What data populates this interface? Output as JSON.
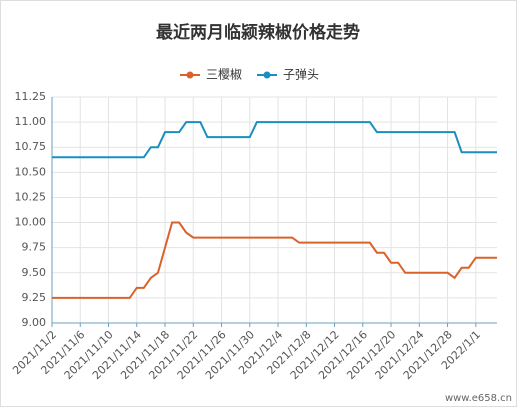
{
  "chart_data": {
    "type": "line",
    "title": "最近两月临颍辣椒价格走势",
    "categories": [
      "2021/11/2",
      null,
      null,
      null,
      "2021/11/6",
      null,
      null,
      null,
      "2021/11/10",
      null,
      null,
      null,
      "2021/11/14",
      null,
      null,
      null,
      "2021/11/18",
      null,
      null,
      null,
      "2021/11/22",
      null,
      null,
      null,
      "2021/11/26",
      null,
      null,
      null,
      "2021/11/30",
      null,
      null,
      null,
      "2021/12/4",
      null,
      null,
      null,
      "2021/12/8",
      null,
      null,
      null,
      "2021/12/12",
      null,
      null,
      null,
      "2021/12/16",
      null,
      null,
      null,
      "2021/12/20",
      null,
      null,
      null,
      "2021/12/24",
      null,
      null,
      null,
      "2021/12/28",
      null,
      null,
      null,
      "2022/1/1",
      null,
      null,
      null
    ],
    "series": [
      {
        "name": "三樱椒",
        "color": "#d9622b",
        "values": [
          9.25,
          9.25,
          9.25,
          9.25,
          9.25,
          9.25,
          9.25,
          9.25,
          9.25,
          9.25,
          9.25,
          9.25,
          9.35,
          9.35,
          9.45,
          9.5,
          9.75,
          10,
          10,
          9.9,
          9.85,
          9.85,
          9.85,
          9.85,
          9.85,
          9.85,
          9.85,
          9.85,
          9.85,
          9.85,
          9.85,
          9.85,
          9.85,
          9.85,
          9.85,
          9.8,
          9.8,
          9.8,
          9.8,
          9.8,
          9.8,
          9.8,
          9.8,
          9.8,
          9.8,
          9.8,
          9.7,
          9.7,
          9.6,
          9.6,
          9.5,
          9.5,
          9.5,
          9.5,
          9.5,
          9.5,
          9.5,
          9.45,
          9.55,
          9.55,
          9.65,
          9.65,
          9.65,
          9.65
        ]
      },
      {
        "name": "子弹头",
        "color": "#1a8fbf",
        "values": [
          10.65,
          10.65,
          10.65,
          10.65,
          10.65,
          10.65,
          10.65,
          10.65,
          10.65,
          10.65,
          10.65,
          10.65,
          10.65,
          10.65,
          10.75,
          10.75,
          10.9,
          10.9,
          10.9,
          11,
          11,
          11,
          10.85,
          10.85,
          10.85,
          10.85,
          10.85,
          10.85,
          10.85,
          11,
          11,
          11,
          11,
          11,
          11,
          11,
          11,
          11,
          11,
          11,
          11,
          11,
          11,
          11,
          11,
          11,
          10.9,
          10.9,
          10.9,
          10.9,
          10.9,
          10.9,
          10.9,
          10.9,
          10.9,
          10.9,
          10.9,
          10.9,
          10.7,
          10.7,
          10.7,
          10.7,
          10.7,
          10.7
        ]
      }
    ],
    "ylim": [
      9,
      11.25
    ],
    "yticks": [
      {
        "value": 9,
        "label": "9.00"
      },
      {
        "value": 9.25,
        "label": "9.25"
      },
      {
        "value": 9.5,
        "label": "9.50"
      },
      {
        "value": 9.75,
        "label": "9.75"
      },
      {
        "value": 10,
        "label": "10.00"
      },
      {
        "value": 10.25,
        "label": "10.25"
      },
      {
        "value": 10.5,
        "label": "10.50"
      },
      {
        "value": 10.75,
        "label": "10.75"
      },
      {
        "value": 11,
        "label": "11.00"
      },
      {
        "value": 11.25,
        "label": "11.25"
      }
    ],
    "grid": true,
    "legend": "top",
    "watermark": "www.e658.cn"
  }
}
